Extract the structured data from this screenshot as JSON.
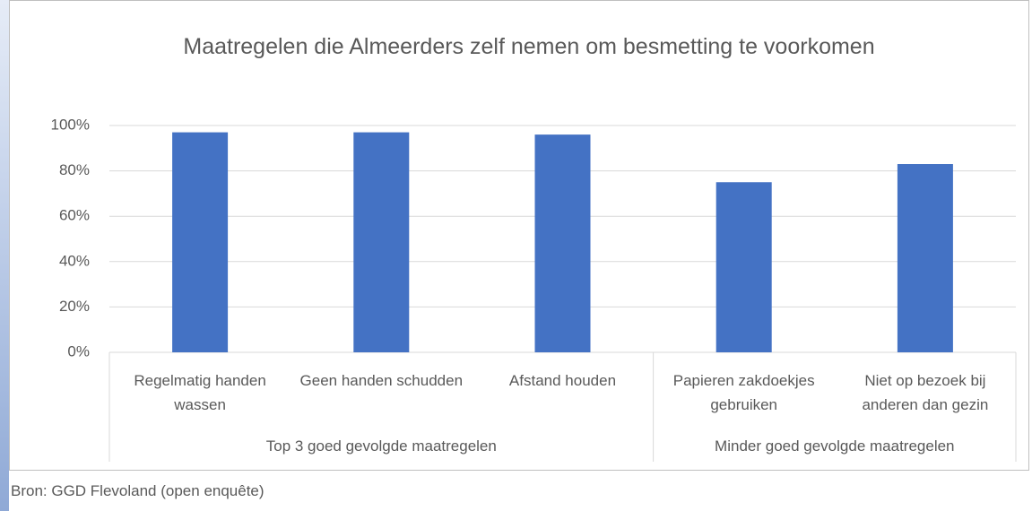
{
  "chart_data": {
    "type": "bar",
    "title": "Maatregelen die Almeerders zelf nemen om besmetting te voorkomen",
    "categories": [
      "Regelmatig handen wassen",
      "Geen handen schudden",
      "Afstand houden",
      "Papieren zakdoekjes gebruiken",
      "Niet op bezoek bij anderen dan gezin"
    ],
    "groups": [
      {
        "label": "Top 3 goed gevolgde maatregelen",
        "span": 3
      },
      {
        "label": "Minder goed gevolgde maatregelen",
        "span": 2
      }
    ],
    "values": [
      97,
      97,
      96,
      75,
      83
    ],
    "color": "#4472c4",
    "ylim": [
      0,
      100
    ],
    "yticks": [
      {
        "value": 0,
        "label": "0%"
      },
      {
        "value": 20,
        "label": "20%"
      },
      {
        "value": 40,
        "label": "40%"
      },
      {
        "value": 60,
        "label": "60%"
      },
      {
        "value": 80,
        "label": "80%"
      },
      {
        "value": 100,
        "label": "100%"
      }
    ],
    "grid": true,
    "source": "Bron: GGD Flevoland (open enquête)"
  }
}
